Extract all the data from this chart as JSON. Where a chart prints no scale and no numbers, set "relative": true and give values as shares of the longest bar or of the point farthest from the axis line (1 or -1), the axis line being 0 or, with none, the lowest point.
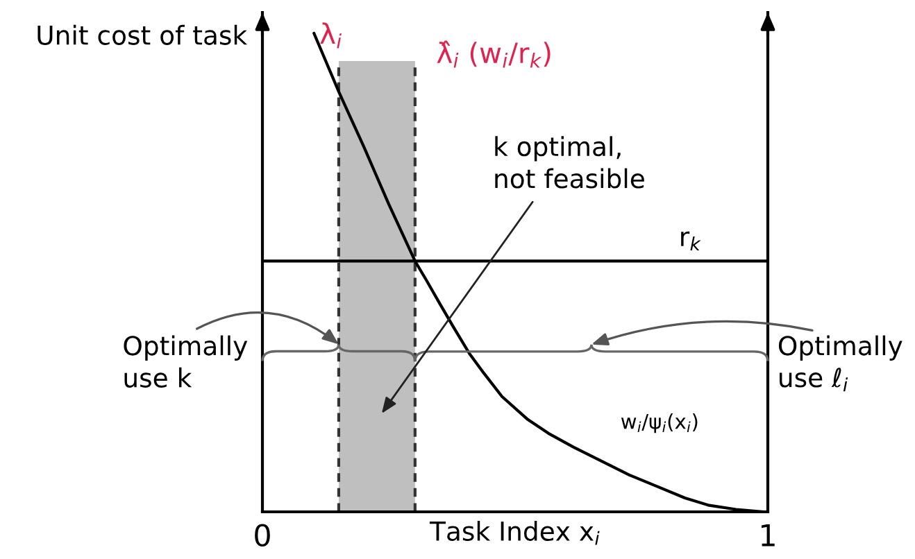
{
  "chart_data": {
    "type": "line",
    "relative": true,
    "xlabel": "Task Index x$_{i}$",
    "ylabel": "Unit cost of task",
    "x": [
      0.102,
      0.151,
      0.201,
      0.25,
      0.302,
      0.325,
      0.351,
      0.378,
      0.41,
      0.438,
      0.474,
      0.525,
      0.566,
      0.616,
      0.671,
      0.726,
      0.781,
      0.836,
      0.882,
      0.937,
      0.992,
      1.0
    ],
    "series": [
      {
        "name": "w$_{i}$/ψ$_{i}$(x$_{i}$)",
        "color": "#000000",
        "values": [
          1.0,
          0.878,
          0.762,
          0.643,
          0.524,
          0.483,
          0.435,
          0.386,
          0.33,
          0.29,
          0.241,
          0.193,
          0.164,
          0.135,
          0.106,
          0.077,
          0.053,
          0.029,
          0.014,
          0.005,
          0.0,
          0.0
        ]
      }
    ],
    "xlim": [
      0,
      1
    ],
    "xticks": [
      0,
      1
    ],
    "ref_lines": [
      {
        "axis": "y",
        "value": 0.524,
        "label": "r$_{k}$",
        "color": "#000000"
      },
      {
        "axis": "x",
        "value": 0.151,
        "label": "λ$_{i}$",
        "color": "#333333",
        "line_style": "dashed"
      },
      {
        "axis": "x",
        "value": 0.302,
        "label": "λ̂$_{i}$ (w$_{i}$/r$_{k}$)",
        "color": "#333333",
        "line_style": "dashed"
      }
    ],
    "bands": [
      {
        "axis": "x",
        "from": 0.151,
        "to": 0.302,
        "color": "#bfbfbf"
      }
    ],
    "annotations": [
      "k optimal,\nnot feasible",
      {
        "text": "Optimally\nuse k",
        "x": 0.151,
        "y": 0.35
      },
      "Optimally\nuse ℓ$_{i}$"
    ],
    "legend": false,
    "marker": "none",
    "line_style": "solid"
  }
}
